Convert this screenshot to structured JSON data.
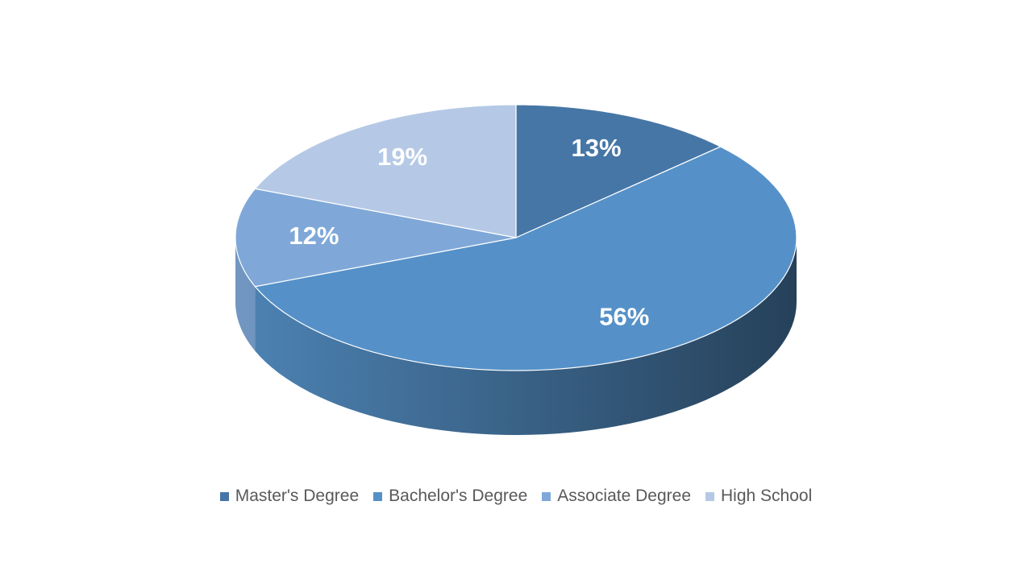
{
  "chart_data": {
    "type": "pie",
    "categories": [
      "Master's Degree",
      "Bachelor's Degree",
      "Associate Degree",
      "High School"
    ],
    "values": [
      13,
      56,
      12,
      19
    ],
    "value_labels": [
      "13%",
      "56%",
      "12%",
      "19%"
    ],
    "colors": [
      "#4676a6",
      "#5591c8",
      "#7fa8d8",
      "#b5c9e6"
    ],
    "legend": "bottom"
  }
}
